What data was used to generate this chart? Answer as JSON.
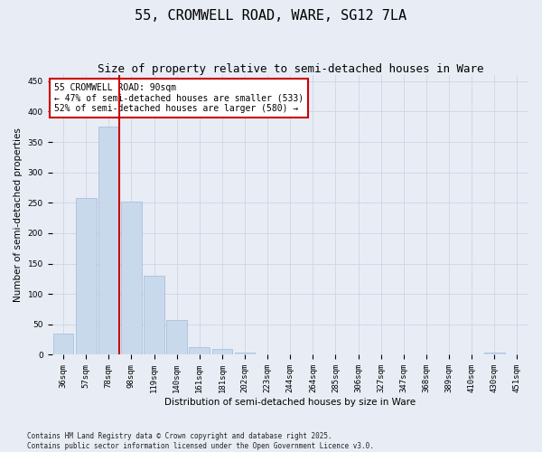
{
  "title": "55, CROMWELL ROAD, WARE, SG12 7LA",
  "subtitle": "Size of property relative to semi-detached houses in Ware",
  "xlabel": "Distribution of semi-detached houses by size in Ware",
  "ylabel": "Number of semi-detached properties",
  "categories": [
    "36sqm",
    "57sqm",
    "78sqm",
    "98sqm",
    "119sqm",
    "140sqm",
    "161sqm",
    "181sqm",
    "202sqm",
    "223sqm",
    "244sqm",
    "264sqm",
    "285sqm",
    "306sqm",
    "327sqm",
    "347sqm",
    "368sqm",
    "389sqm",
    "410sqm",
    "430sqm",
    "451sqm"
  ],
  "values": [
    35,
    258,
    375,
    252,
    130,
    57,
    12,
    10,
    3,
    0,
    0,
    0,
    0,
    0,
    0,
    0,
    0,
    0,
    0,
    4,
    0
  ],
  "bar_color": "#c9d9ec",
  "bar_edgecolor": "#a0b8d8",
  "vline_color": "#cc0000",
  "annotation_text": "55 CROMWELL ROAD: 90sqm\n← 47% of semi-detached houses are smaller (533)\n52% of semi-detached houses are larger (580) →",
  "annotation_box_color": "#ffffff",
  "annotation_box_edgecolor": "#cc0000",
  "ylim": [
    0,
    460
  ],
  "yticks": [
    0,
    50,
    100,
    150,
    200,
    250,
    300,
    350,
    400,
    450
  ],
  "grid_color": "#d0d8e8",
  "background_color": "#e8edf5",
  "footer": "Contains HM Land Registry data © Crown copyright and database right 2025.\nContains public sector information licensed under the Open Government Licence v3.0.",
  "title_fontsize": 11,
  "subtitle_fontsize": 9,
  "axis_label_fontsize": 7.5,
  "tick_fontsize": 6.5,
  "annotation_fontsize": 7,
  "footer_fontsize": 5.5
}
